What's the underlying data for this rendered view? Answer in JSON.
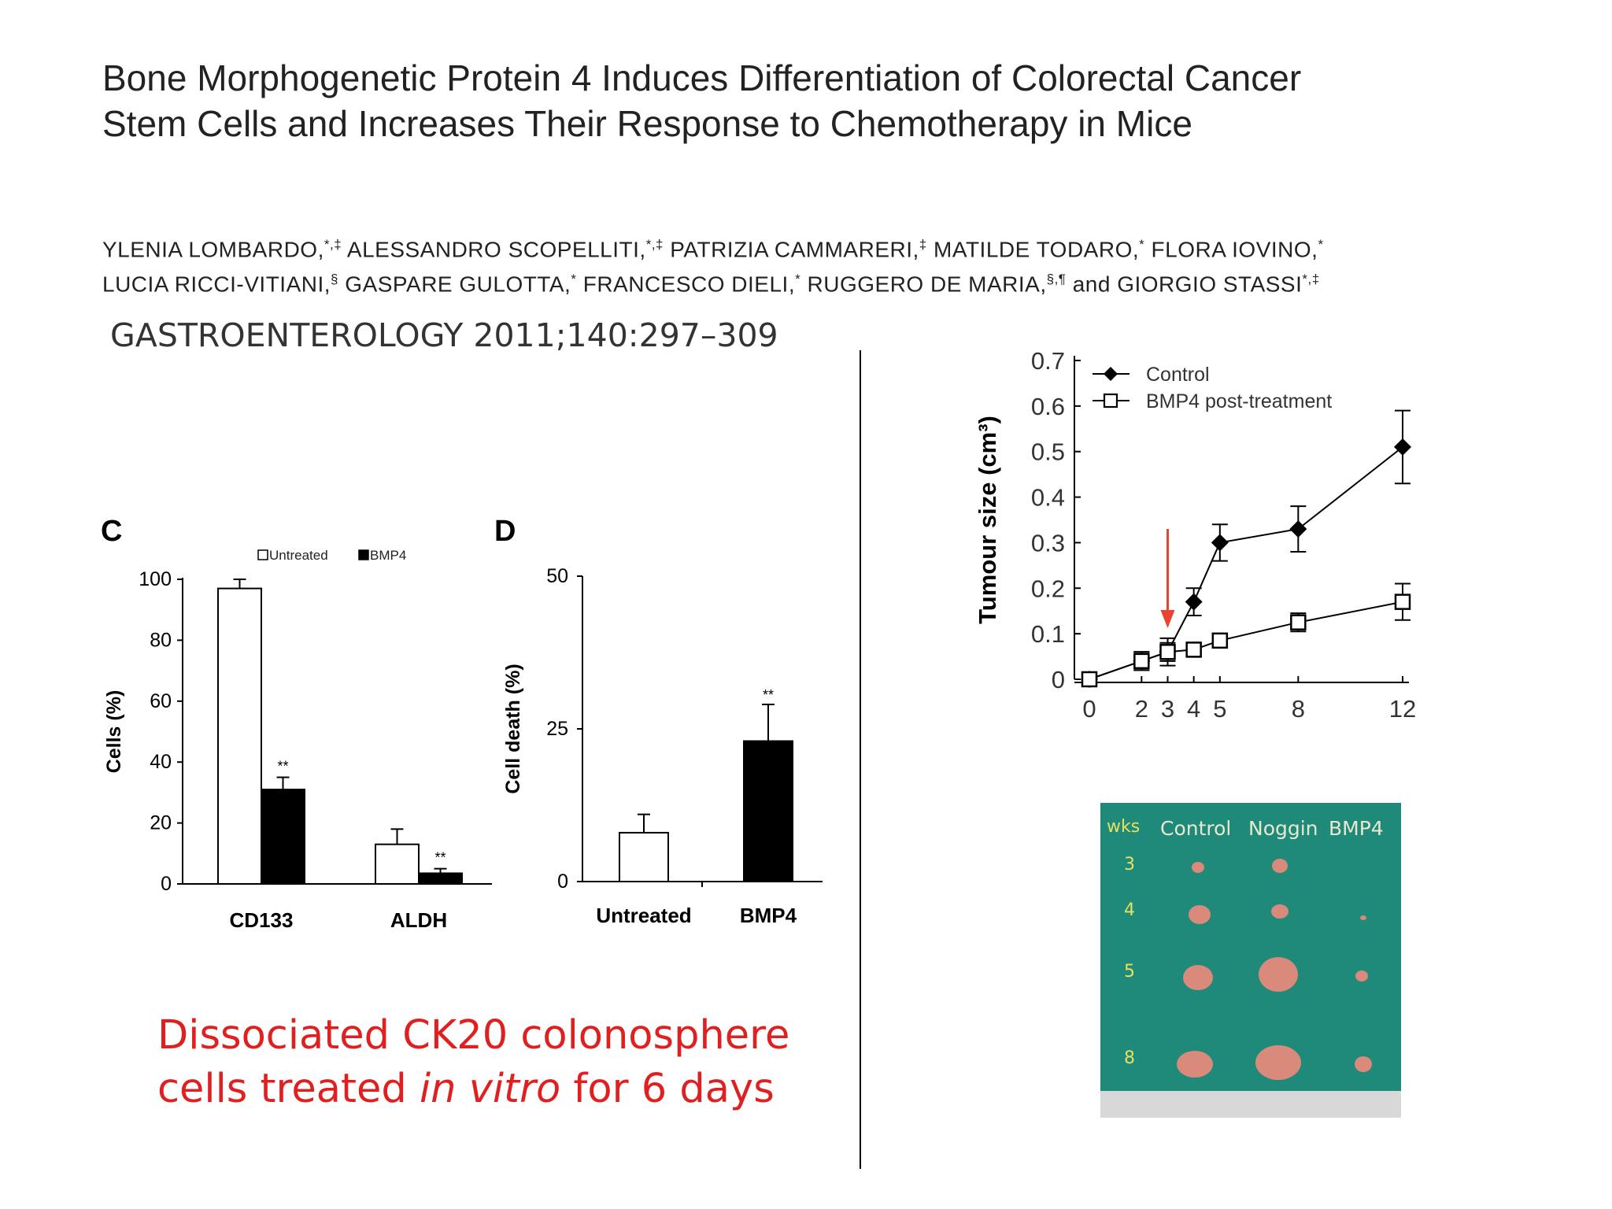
{
  "paper": {
    "title_line1": "Bone Morphogenetic Protein 4 Induces Differentiation of Colorectal Cancer",
    "title_line2": "Stem Cells and Increases Their Response to Chemotherapy in Mice",
    "authors": [
      {
        "name": "YLENIA LOMBARDO,",
        "sup": "*,‡"
      },
      {
        "name": "ALESSANDRO SCOPELLITI,",
        "sup": "*,‡"
      },
      {
        "name": "PATRIZIA CAMMARERI,",
        "sup": "‡"
      },
      {
        "name": "MATILDE TODARO,",
        "sup": "*"
      },
      {
        "name": "FLORA IOVINO,",
        "sup": "*"
      },
      {
        "name": "LUCIA RICCI-VITIANI,",
        "sup": "§"
      },
      {
        "name": "GASPARE GULOTTA,",
        "sup": "*"
      },
      {
        "name": "FRANCESCO DIELI,",
        "sup": "*"
      },
      {
        "name": "RUGGERO DE MARIA,",
        "sup": "§,¶"
      },
      {
        "name": "and GIORGIO STASSI",
        "sup": "*,‡"
      }
    ],
    "journal": "GASTROENTEROLOGY 2011;140:297–309"
  },
  "caption": {
    "line1": "Dissociated CK20 colonosphere",
    "line2_pre": "cells treated ",
    "line2_italic": "in vitro",
    "line2_post": " for 6 days"
  },
  "colors": {
    "caption": "#e02020",
    "arrow": "#e8432e",
    "photo_bg": "#1f8a79"
  },
  "chart_data": [
    {
      "panel": "C",
      "type": "bar",
      "categories": [
        "CD133",
        "ALDH"
      ],
      "series": [
        {
          "name": "Untreated",
          "values": [
            97,
            13
          ],
          "errors": [
            3,
            5
          ],
          "fill": "#ffffff"
        },
        {
          "name": "BMP4",
          "values": [
            31,
            3.5
          ],
          "errors": [
            4,
            1.5
          ],
          "fill": "#000000"
        }
      ],
      "significance": [
        "**",
        "**"
      ],
      "ylabel": "Cells (%)",
      "ylim": [
        0,
        100
      ],
      "yticks": [
        "0",
        "20",
        "40",
        "60",
        "80",
        "100"
      ],
      "legend": "top"
    },
    {
      "panel": "D",
      "type": "bar",
      "categories": [
        "Untreated",
        "BMP4"
      ],
      "values": [
        8,
        23
      ],
      "errors": [
        3,
        6
      ],
      "fills": [
        "#ffffff",
        "#000000"
      ],
      "significance": [
        "",
        "**"
      ],
      "ylabel": "Cell death (%)",
      "ylim": [
        0,
        50
      ],
      "yticks": [
        "0",
        "25",
        "50"
      ]
    },
    {
      "type": "line",
      "x": [
        0,
        2,
        3,
        4,
        5,
        8,
        12
      ],
      "xticks": [
        "0",
        "2",
        "3",
        "4",
        "5",
        "8",
        "12"
      ],
      "ylabel": "Tumour size (cm³)",
      "ylim": [
        0,
        0.7
      ],
      "yticks": [
        "0",
        "0.1",
        "0.2",
        "0.3",
        "0.4",
        "0.5",
        "0.6",
        "0.7"
      ],
      "series": [
        {
          "name": "Control",
          "marker": "filled-diamond",
          "points": [
            [
              0,
              0
            ],
            [
              2,
              0.04
            ],
            [
              3,
              0.06
            ],
            [
              4,
              0.17
            ],
            [
              5,
              0.3
            ],
            [
              8,
              0.33
            ],
            [
              12,
              0.51
            ]
          ],
          "errors": [
            0,
            0.02,
            0.03,
            0.03,
            0.04,
            0.05,
            0.08
          ]
        },
        {
          "name": "BMP4 post-treatment",
          "marker": "open-square",
          "points": [
            [
              0,
              0
            ],
            [
              2,
              0.04
            ],
            [
              3,
              0.06
            ],
            [
              4,
              0.065
            ],
            [
              5,
              0.085
            ],
            [
              8,
              0.125
            ],
            [
              12,
              0.17
            ]
          ],
          "errors": [
            0,
            0.02,
            0.02,
            0.015,
            0.015,
            0.02,
            0.04
          ]
        }
      ],
      "annotation": {
        "type": "arrow",
        "x": 3
      },
      "legend": "top-left"
    }
  ],
  "photo": {
    "header": [
      "wks",
      "Control",
      "Noggin",
      "BMP4"
    ],
    "weeks": [
      "3",
      "4",
      "5",
      "8"
    ]
  }
}
